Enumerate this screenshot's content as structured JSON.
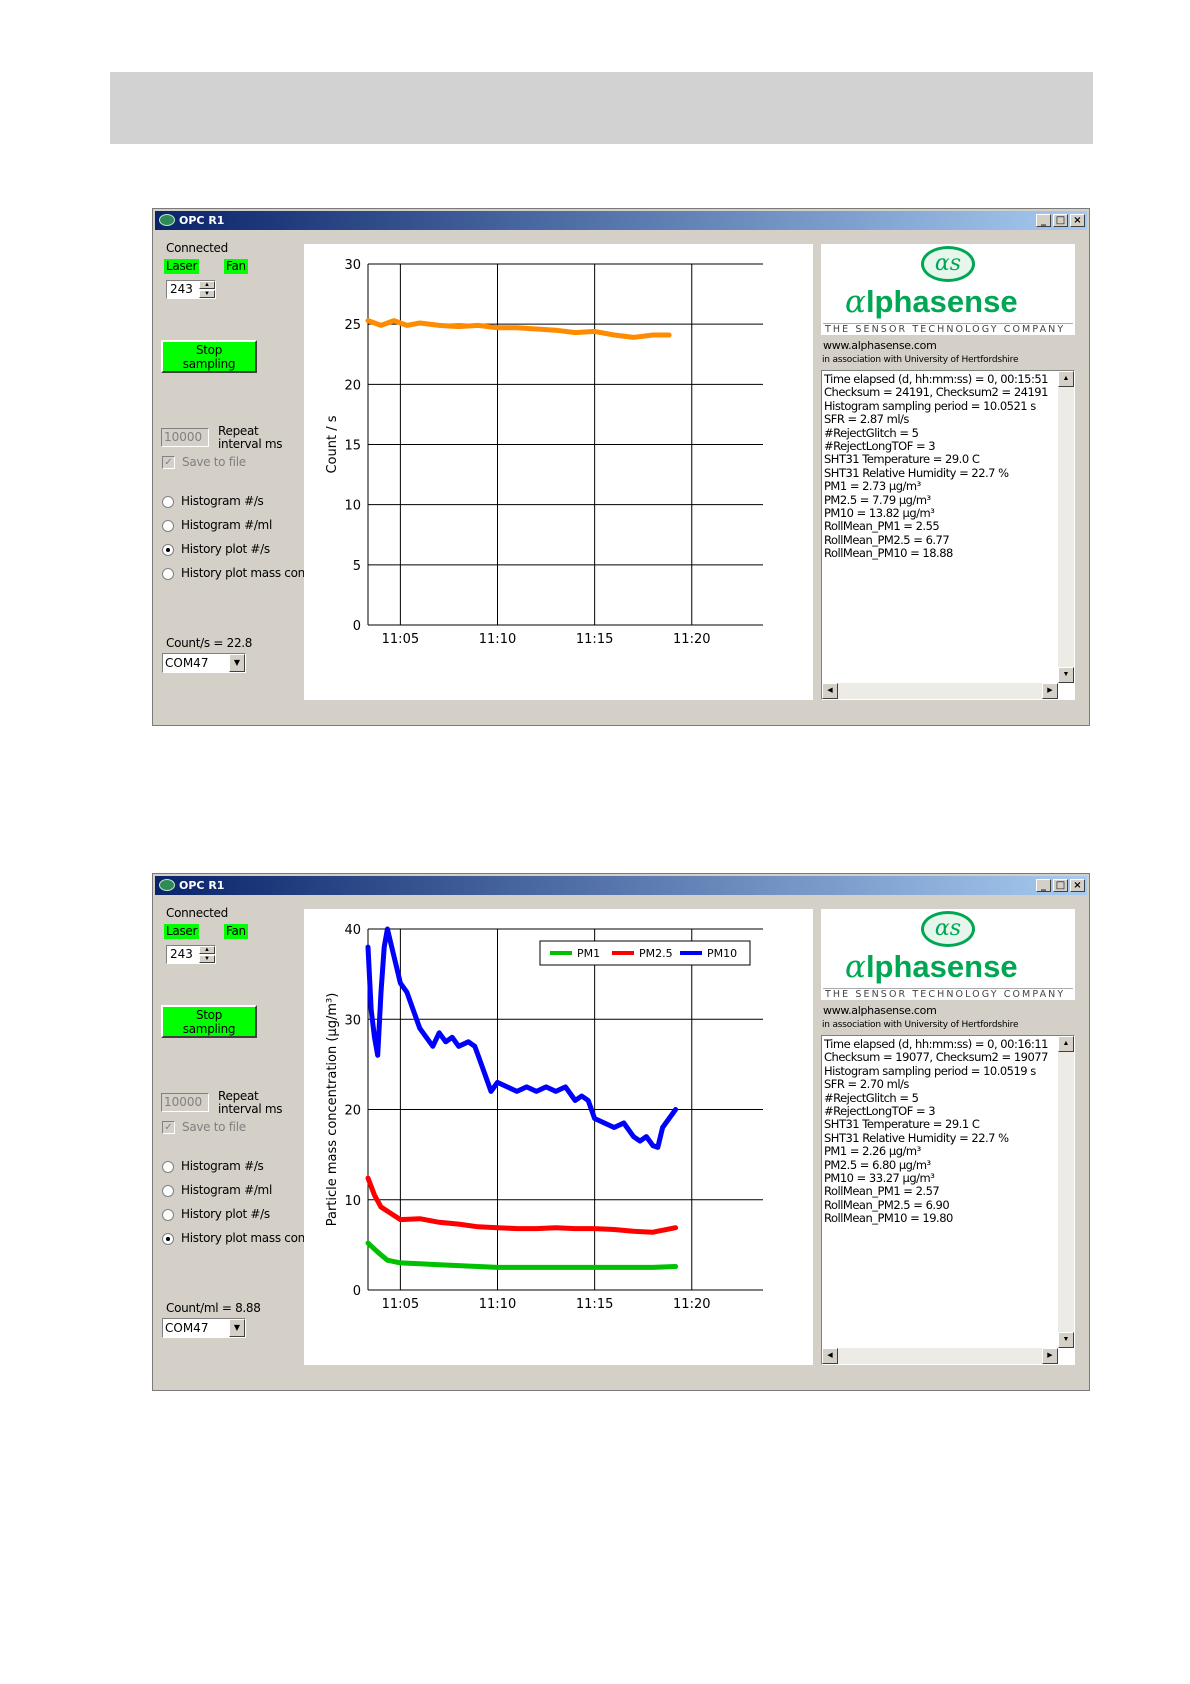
{
  "windows": [
    {
      "title": "OPC R1",
      "status": "Connected",
      "laser": "Laser",
      "fan": "Fan",
      "spin_value": "243",
      "stop_button": "Stop sampling",
      "repeat_value": "10000",
      "repeat_label1": "Repeat",
      "repeat_label2": "interval ms",
      "save_label": "Save to file",
      "radios": [
        "Histogram #/s",
        "Histogram #/ml",
        "History plot #/s",
        "History plot mass conc."
      ],
      "selected_radio": 2,
      "count_readout": "Count/s = 22.8",
      "port": "COM47",
      "url": "www.alphasense.com",
      "assoc": "in association with University of Hertfordshire",
      "tagline": "THE SENSOR TECHNOLOGY COMPANY",
      "brand": "lphasense",
      "info": [
        "Time elapsed (d, hh:mm:ss) = 0, 00:15:51",
        "Checksum = 24191, Checksum2 = 24191",
        "Histogram sampling period = 10.0521 s",
        "SFR = 2.87 ml/s",
        "#RejectGlitch = 5",
        "#RejectLongTOF = 3",
        "SHT31 Temperature = 29.0 C",
        "SHT31 Relative Humidity = 22.7 %",
        "PM1 = 2.73 µg/m³",
        "PM2.5 = 7.79 µg/m³",
        "PM10 = 13.82 µg/m³",
        "RollMean_PM1 = 2.55",
        "RollMean_PM2.5 = 6.77",
        "RollMean_PM10 = 18.88"
      ]
    },
    {
      "title": "OPC R1",
      "status": "Connected",
      "laser": "Laser",
      "fan": "Fan",
      "spin_value": "243",
      "stop_button": "Stop sampling",
      "repeat_value": "10000",
      "repeat_label1": "Repeat",
      "repeat_label2": "interval ms",
      "save_label": "Save to file",
      "radios": [
        "Histogram #/s",
        "Histogram #/ml",
        "History plot #/s",
        "History plot mass conc."
      ],
      "selected_radio": 3,
      "count_readout": "Count/ml = 8.88",
      "port": "COM47",
      "url": "www.alphasense.com",
      "assoc": "in association with University of Hertfordshire",
      "tagline": "THE SENSOR TECHNOLOGY COMPANY",
      "brand": "lphasense",
      "info": [
        "Time elapsed (d, hh:mm:ss) = 0, 00:16:11",
        "Checksum = 19077, Checksum2 = 19077",
        "Histogram sampling period = 10.0519 s",
        "SFR = 2.70 ml/s",
        "#RejectGlitch = 5",
        "#RejectLongTOF = 3",
        "SHT31 Temperature = 29.1 C",
        "SHT31 Relative Humidity = 22.7 %",
        "PM1 = 2.26 µg/m³",
        "PM2.5 = 6.80 µg/m³",
        "PM10 = 33.27 µg/m³",
        "RollMean_PM1 = 2.57",
        "RollMean_PM2.5 = 6.90",
        "RollMean_PM10 = 19.80"
      ]
    }
  ],
  "chart_data": [
    {
      "type": "line",
      "ylabel": "Count / s",
      "xlabel": "",
      "ylim": [
        0,
        30
      ],
      "yticks": [
        0,
        5,
        10,
        15,
        20,
        25,
        30
      ],
      "xlim": [
        "11:03:20",
        "11:23:40"
      ],
      "xticks": [
        "11:05",
        "11:10",
        "11:15",
        "11:20"
      ],
      "grid": true,
      "legend": "none",
      "series": [
        {
          "color": "#ff8c00",
          "x": [
            "11:03:20",
            "11:04:00",
            "11:04:40",
            "11:05:20",
            "11:06:00",
            "11:07:00",
            "11:08:00",
            "11:09:00",
            "11:10:00",
            "11:11:00",
            "11:12:00",
            "11:13:00",
            "11:14:00",
            "11:15:00",
            "11:16:00",
            "11:17:00",
            "11:18:00",
            "11:18:50"
          ],
          "values": [
            25.3,
            24.9,
            25.3,
            24.9,
            25.1,
            24.9,
            24.8,
            24.9,
            24.7,
            24.7,
            24.6,
            24.5,
            24.3,
            24.4,
            24.1,
            23.9,
            24.1,
            24.1
          ]
        }
      ]
    },
    {
      "type": "line",
      "ylabel": "Particle mass concentration (µg/m³)",
      "xlabel": "",
      "ylim": [
        0,
        40
      ],
      "yticks": [
        0,
        10,
        20,
        30,
        40
      ],
      "xlim": [
        "11:03:20",
        "11:23:40"
      ],
      "xticks": [
        "11:05",
        "11:10",
        "11:15",
        "11:20"
      ],
      "grid": true,
      "legend": "top-right",
      "series": [
        {
          "name": "PM1",
          "color": "#00c000",
          "x": [
            "11:03:20",
            "11:03:50",
            "11:04:20",
            "11:05:00",
            "11:06:00",
            "11:07:00",
            "11:08:00",
            "11:09:00",
            "11:10:00",
            "11:11:00",
            "11:12:00",
            "11:13:00",
            "11:14:00",
            "11:15:00",
            "11:16:00",
            "11:17:00",
            "11:18:00",
            "11:19:10"
          ],
          "values": [
            5.2,
            4.2,
            3.3,
            3.0,
            2.9,
            2.8,
            2.7,
            2.6,
            2.5,
            2.5,
            2.5,
            2.5,
            2.5,
            2.5,
            2.5,
            2.5,
            2.5,
            2.6
          ]
        },
        {
          "name": "PM2.5",
          "color": "#ff0000",
          "x": [
            "11:03:20",
            "11:03:40",
            "11:04:00",
            "11:04:30",
            "11:05:00",
            "11:06:00",
            "11:07:00",
            "11:08:00",
            "11:09:00",
            "11:10:00",
            "11:11:00",
            "11:12:00",
            "11:13:00",
            "11:14:00",
            "11:15:00",
            "11:16:00",
            "11:17:00",
            "11:18:00",
            "11:19:10"
          ],
          "values": [
            12.4,
            10.5,
            9.2,
            8.5,
            7.8,
            7.9,
            7.5,
            7.3,
            7.0,
            6.9,
            6.8,
            6.8,
            6.9,
            6.8,
            6.8,
            6.7,
            6.5,
            6.4,
            6.9
          ]
        },
        {
          "name": "PM10",
          "color": "#0000ff",
          "x": [
            "11:03:20",
            "11:03:30",
            "11:03:40",
            "11:03:50",
            "11:04:00",
            "11:04:10",
            "11:04:20",
            "11:04:40",
            "11:05:00",
            "11:05:20",
            "11:05:40",
            "11:06:00",
            "11:06:20",
            "11:06:40",
            "11:07:00",
            "11:07:20",
            "11:07:40",
            "11:08:00",
            "11:08:30",
            "11:08:50",
            "11:09:00",
            "11:09:20",
            "11:09:40",
            "11:10:00",
            "11:10:30",
            "11:11:00",
            "11:11:30",
            "11:12:00",
            "11:12:30",
            "11:13:00",
            "11:13:30",
            "11:14:00",
            "11:14:20",
            "11:14:40",
            "11:15:00",
            "11:15:30",
            "11:16:00",
            "11:16:30",
            "11:17:00",
            "11:17:20",
            "11:17:40",
            "11:18:00",
            "11:18:15",
            "11:18:30",
            "11:18:50",
            "11:19:10"
          ],
          "values": [
            38.0,
            31.0,
            28.0,
            26.0,
            33.0,
            38.0,
            40.0,
            37.0,
            34.0,
            33.0,
            31.0,
            29.0,
            28.0,
            27.0,
            28.5,
            27.5,
            28.0,
            27.0,
            27.5,
            27.0,
            26.0,
            24.0,
            22.0,
            23.0,
            22.5,
            22.0,
            22.5,
            22.0,
            22.5,
            22.0,
            22.5,
            21.0,
            21.5,
            21.0,
            19.0,
            18.5,
            18.0,
            18.5,
            17.0,
            16.5,
            17.0,
            16.0,
            15.8,
            18.0,
            19.0,
            20.0
          ]
        }
      ]
    }
  ]
}
